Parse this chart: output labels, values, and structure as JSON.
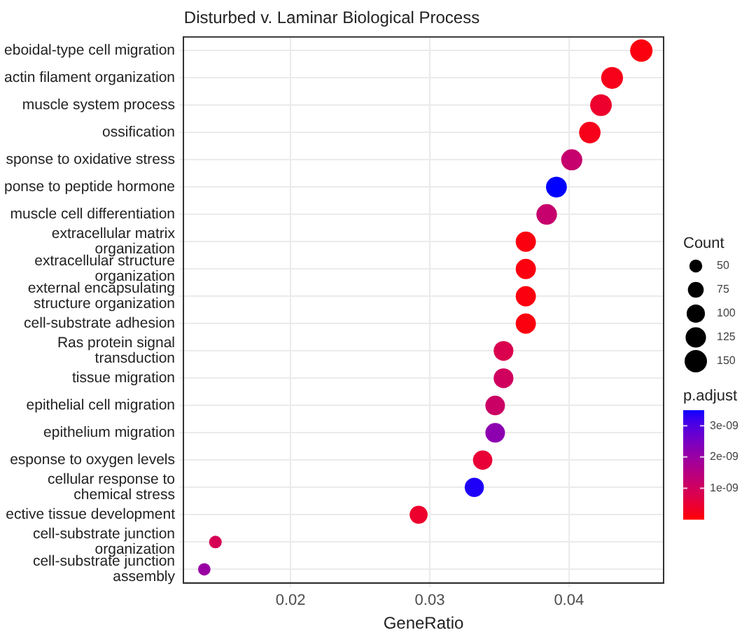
{
  "chart_data": {
    "type": "bubble",
    "title": "Disturbed v. Laminar Biological Process",
    "xlabel": "GeneRatio",
    "legend_title": "Count",
    "clabel": "p.adjust",
    "categories": [
      "eboidal-type cell migration",
      "actin filament organization",
      "muscle system process",
      "ossification",
      "sponse to oxidative stress",
      "ponse to peptide hormone",
      "muscle cell differentiation",
      "extracellular matrix\norganization",
      "extracellular structure\norganization",
      "external encapsulating\nstructure organization",
      "cell-substrate adhesion",
      "Ras protein signal\ntransduction",
      "tissue migration",
      "epithelial cell migration",
      "epithelium migration",
      "esponse to oxygen levels",
      "cellular response to\nchemical stress",
      "ective tissue development",
      "cell-substrate junction\norganization",
      "cell-substrate junction\nassembly"
    ],
    "values": [
      0.0452,
      0.0431,
      0.0423,
      0.0415,
      0.0402,
      0.0391,
      0.0384,
      0.0369,
      0.0369,
      0.0369,
      0.0369,
      0.0353,
      0.0353,
      0.0347,
      0.0347,
      0.0338,
      0.0332,
      0.0292,
      0.0146,
      0.0138
    ],
    "sizes": [
      150,
      143,
      140,
      138,
      133,
      130,
      127,
      122,
      122,
      122,
      122,
      117,
      117,
      115,
      115,
      112,
      110,
      97,
      48,
      46
    ],
    "cvalues": [
      1e-10,
      2e-10,
      4e-10,
      2e-10,
      1.2e-09,
      3.5e-09,
      1.2e-09,
      1e-10,
      1e-10,
      1e-10,
      1e-10,
      8e-10,
      1e-09,
      1.1e-09,
      2.2e-09,
      5e-10,
      3.4e-09,
      4e-10,
      9e-10,
      2e-09
    ],
    "size_legend": [
      50,
      75,
      100,
      125,
      150
    ],
    "clim": [
      0,
      3.5e-09
    ],
    "cticks": [
      {
        "value": 1e-09,
        "label": "1e-09"
      },
      {
        "value": 2e-09,
        "label": "2e-09"
      },
      {
        "value": 3e-09,
        "label": "3e-09"
      }
    ],
    "orientation": "horizontal",
    "xlim": [
      0.0123,
      0.0468
    ],
    "xticks": [
      0.02,
      0.03,
      0.04
    ],
    "grid": true
  }
}
